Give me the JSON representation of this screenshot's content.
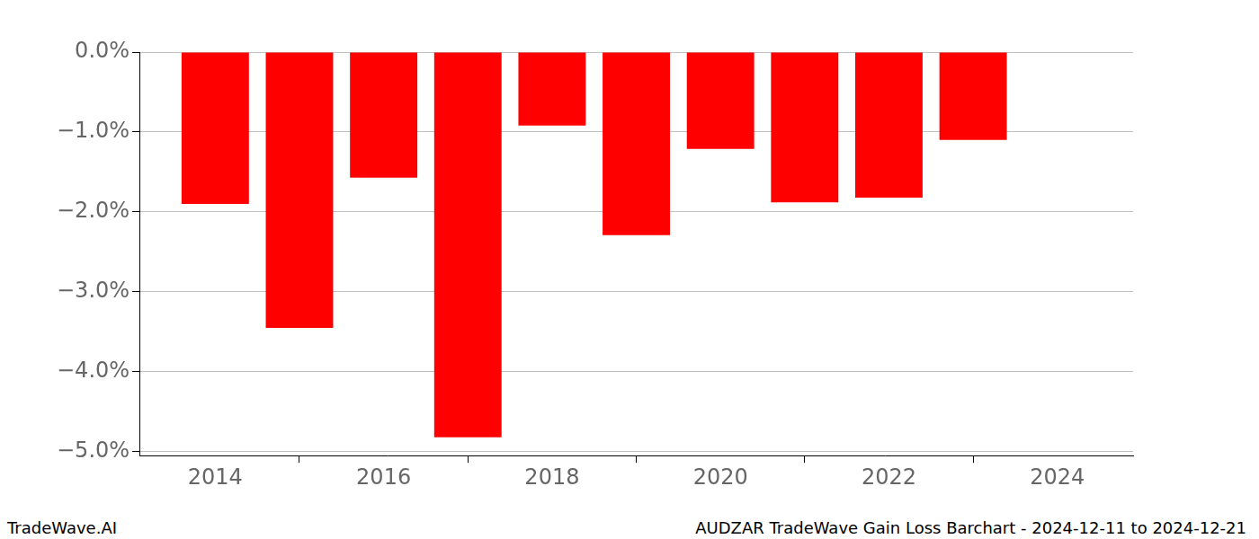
{
  "chart_data": {
    "type": "bar",
    "title": "AUDZAR TradeWave Gain Loss Barchart - 2024-12-11 to 2024-12-21",
    "annotations": [
      "TradeWave.AI"
    ],
    "x": [
      2014,
      2015,
      2016,
      2017,
      2018,
      2019,
      2020,
      2021,
      2022,
      2023
    ],
    "values": [
      -1.9,
      -3.45,
      -1.57,
      -4.82,
      -0.92,
      -2.29,
      -1.21,
      -1.88,
      -1.82,
      -1.1
    ],
    "color": "#ff0000",
    "xlim": [
      2013.1,
      2024.9
    ],
    "xticks": [
      2014,
      2016,
      2018,
      2020,
      2022,
      2024
    ],
    "ylim": [
      -5.05,
      0
    ],
    "yticks": [
      {
        "value": 0,
        "label": "0.0%"
      },
      {
        "value": -1,
        "label": "−1.0%"
      },
      {
        "value": -2,
        "label": "−2.0%"
      },
      {
        "value": -3,
        "label": "−3.0%"
      },
      {
        "value": -4,
        "label": "−4.0%"
      },
      {
        "value": -5,
        "label": "−5.0%"
      }
    ],
    "grid": true
  }
}
